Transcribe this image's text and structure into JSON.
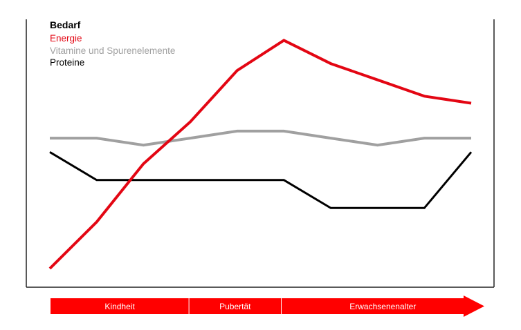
{
  "chart_data": {
    "type": "line",
    "title": "",
    "legend": {
      "title": "Bedarf",
      "placement": "top-left"
    },
    "x": [
      0,
      1,
      2,
      3,
      4,
      5,
      6,
      7,
      8,
      9
    ],
    "series": [
      {
        "name": "Energie",
        "color": "#e30613",
        "values": [
          0.08,
          0.28,
          0.53,
          0.71,
          0.93,
          1.06,
          0.96,
          0.89,
          0.82,
          0.79
        ]
      },
      {
        "name": "Vitamine und Spurenelemente",
        "color": "#a0a0a0",
        "values": [
          0.64,
          0.64,
          0.61,
          0.64,
          0.67,
          0.67,
          0.64,
          0.61,
          0.64,
          0.64
        ]
      },
      {
        "name": "Proteine",
        "color": "#000000",
        "values": [
          0.58,
          0.46,
          0.46,
          0.46,
          0.46,
          0.46,
          0.34,
          0.34,
          0.34,
          0.58
        ]
      }
    ],
    "ylim": [
      0,
      1.15
    ],
    "grid": false,
    "xlabel": "",
    "ylabel": "",
    "phases": [
      {
        "label": "Kindheit",
        "from": 0,
        "to": 3
      },
      {
        "label": "Pubertät",
        "from": 3,
        "to": 5
      },
      {
        "label": "Erwachsenenalter",
        "from": 5,
        "to": 9.4
      }
    ],
    "phase_color": "#ff0000"
  }
}
